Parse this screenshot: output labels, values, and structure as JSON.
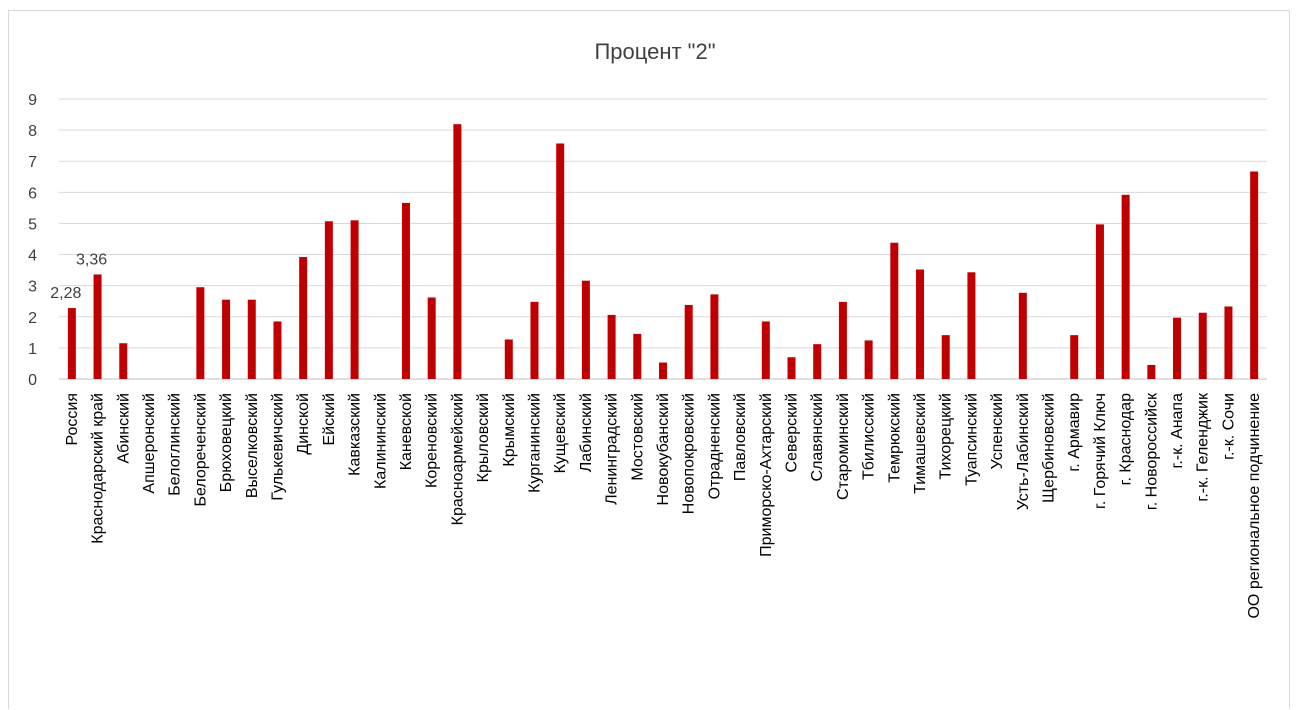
{
  "chart_data": {
    "type": "bar",
    "title": "Процент \"2\"",
    "xlabel": "",
    "ylabel": "",
    "ylim": [
      0,
      9
    ],
    "yticks": [
      "0",
      "1",
      "2",
      "3",
      "4",
      "5",
      "6",
      "7",
      "8",
      "9"
    ],
    "grid": true,
    "legend": "none",
    "bar_color": "#C00000",
    "categories": [
      "Россия",
      "Краснодарский край",
      "Абинский",
      "Апшеронский",
      "Белоглинский",
      "Белореченский",
      "Брюховецкий",
      "Выселковский",
      "Гулькевичский",
      "Динской",
      "Ейский",
      "Кавказский",
      "Калининский",
      "Каневской",
      "Кореновский",
      "Красноармейский",
      "Крыловский",
      "Крымский",
      "Курганинский",
      "Кущевский",
      "Лабинский",
      "Ленинградский",
      "Мостовский",
      "Новокубанский",
      "Новопокровский",
      "Отрадненский",
      "Павловский",
      "Приморско-Ахтарский",
      "Северский",
      "Славянский",
      "Староминский",
      "Тбилисский",
      "Темрюкский",
      "Тимашевский",
      "Тихорецкий",
      "Туапсинский",
      "Успенский",
      "Усть-Лабинский",
      "Щербиновский",
      "г. Армавир",
      "г. Горячий Ключ",
      "г. Краснодар",
      "г. Новороссийск",
      "г.-к. Анапа",
      "г.-к. Геленджик",
      "г.-к. Сочи",
      "ОО региональное подчинение"
    ],
    "values": [
      2.28,
      3.36,
      1.15,
      0,
      0,
      2.95,
      2.55,
      2.55,
      1.85,
      3.92,
      5.07,
      5.1,
      0,
      5.66,
      2.62,
      8.19,
      0,
      1.27,
      2.48,
      7.57,
      3.16,
      2.06,
      1.45,
      0.53,
      2.38,
      2.72,
      0,
      1.85,
      0.7,
      1.12,
      2.48,
      1.24,
      4.38,
      3.52,
      1.41,
      3.43,
      0,
      2.77,
      0,
      1.41,
      4.97,
      5.92,
      0.45,
      1.97,
      2.13,
      2.33,
      6.67
    ],
    "data_labels": [
      {
        "category": "Россия",
        "text": "2,28"
      },
      {
        "category": "Краснодарский край",
        "text": "3,36"
      }
    ]
  }
}
